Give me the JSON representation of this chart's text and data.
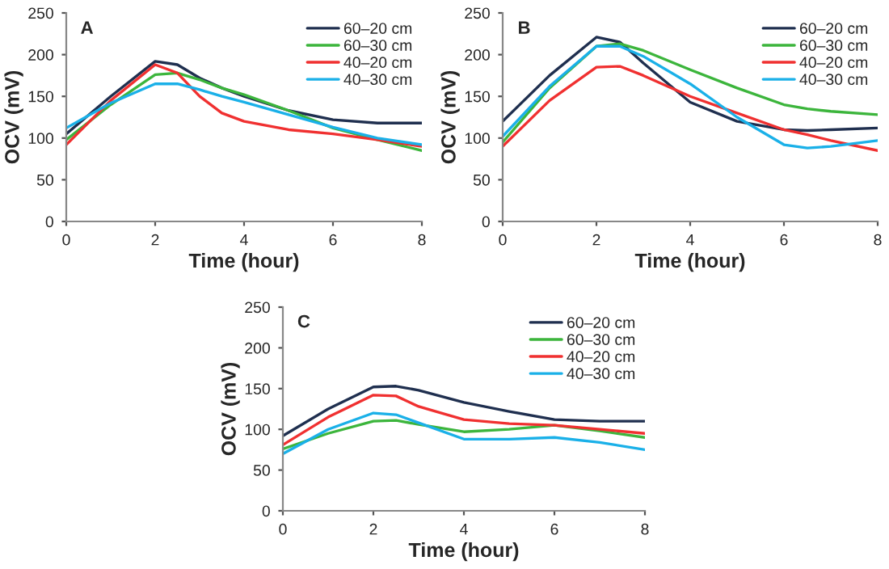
{
  "chart_data": [
    {
      "type": "line",
      "xlabel": "Time (hour)",
      "ylabel": "OCV (mV)",
      "annotations": [
        "A"
      ],
      "xlim": [
        0,
        8
      ],
      "xticks": [
        0,
        2,
        4,
        6,
        8
      ],
      "ylim": [
        0,
        250
      ],
      "yticks": [
        0,
        50,
        100,
        150,
        200,
        250
      ],
      "grid": false,
      "legend": "top right",
      "line_style": "solid",
      "marker": "none",
      "x": [
        0,
        1,
        2,
        2.5,
        3,
        3.5,
        4,
        5,
        6,
        7,
        8
      ],
      "series": [
        {
          "name": "60–20 cm",
          "color": "#1f2f4f",
          "values": [
            105,
            150,
            192,
            188,
            172,
            160,
            150,
            133,
            122,
            118,
            118
          ]
        },
        {
          "name": "60–30 cm",
          "color": "#3cb53c",
          "values": [
            98,
            140,
            176,
            178,
            170,
            160,
            152,
            133,
            112,
            98,
            85
          ]
        },
        {
          "name": "40–20 cm",
          "color": "#f03030",
          "values": [
            92,
            145,
            188,
            178,
            150,
            130,
            120,
            110,
            105,
            98,
            90
          ]
        },
        {
          "name": "40–30 cm",
          "color": "#1ab0e8",
          "values": [
            112,
            142,
            165,
            165,
            158,
            150,
            143,
            128,
            113,
            100,
            92
          ]
        }
      ]
    },
    {
      "type": "line",
      "xlabel": "Time (hour)",
      "ylabel": "OCV (mV)",
      "annotations": [
        "B"
      ],
      "xlim": [
        0,
        8
      ],
      "xticks": [
        0,
        2,
        4,
        6,
        8
      ],
      "ylim": [
        0,
        250
      ],
      "yticks": [
        0,
        50,
        100,
        150,
        200,
        250
      ],
      "grid": false,
      "legend": "top right",
      "line_style": "solid",
      "marker": "none",
      "x": [
        0,
        1,
        2,
        2.5,
        3,
        4,
        5,
        6,
        6.5,
        7,
        8
      ],
      "series": [
        {
          "name": "60–20 cm",
          "color": "#1f2f4f",
          "values": [
            120,
            175,
            221,
            215,
            190,
            143,
            120,
            110,
            109,
            110,
            112
          ]
        },
        {
          "name": "60–30 cm",
          "color": "#3cb53c",
          "values": [
            95,
            160,
            210,
            213,
            205,
            182,
            160,
            140,
            135,
            132,
            128
          ]
        },
        {
          "name": "40–20 cm",
          "color": "#f03030",
          "values": [
            90,
            145,
            185,
            186,
            175,
            150,
            130,
            110,
            104,
            97,
            85
          ]
        },
        {
          "name": "40–30 cm",
          "color": "#1ab0e8",
          "values": [
            102,
            162,
            210,
            210,
            198,
            165,
            125,
            92,
            88,
            90,
            97
          ]
        }
      ]
    },
    {
      "type": "line",
      "xlabel": "Time (hour)",
      "ylabel": "OCV (mV)",
      "annotations": [
        "C"
      ],
      "xlim": [
        0,
        8
      ],
      "xticks": [
        0,
        2,
        4,
        6,
        8
      ],
      "ylim": [
        0,
        250
      ],
      "yticks": [
        0,
        50,
        100,
        150,
        200,
        250
      ],
      "grid": false,
      "legend": "top right",
      "line_style": "solid",
      "marker": "none",
      "x": [
        0,
        1,
        2,
        2.5,
        3,
        4,
        5,
        6,
        7,
        8
      ],
      "series": [
        {
          "name": "60–20 cm",
          "color": "#1f2f4f",
          "values": [
            92,
            125,
            152,
            153,
            148,
            133,
            122,
            112,
            110,
            110
          ]
        },
        {
          "name": "60–30 cm",
          "color": "#3cb53c",
          "values": [
            76,
            95,
            110,
            111,
            106,
            97,
            100,
            105,
            98,
            90
          ]
        },
        {
          "name": "40–20 cm",
          "color": "#f03030",
          "values": [
            81,
            115,
            142,
            141,
            128,
            112,
            107,
            105,
            100,
            95
          ]
        },
        {
          "name": "40–30 cm",
          "color": "#1ab0e8",
          "values": [
            70,
            100,
            120,
            118,
            108,
            88,
            88,
            90,
            84,
            75
          ]
        }
      ]
    }
  ]
}
